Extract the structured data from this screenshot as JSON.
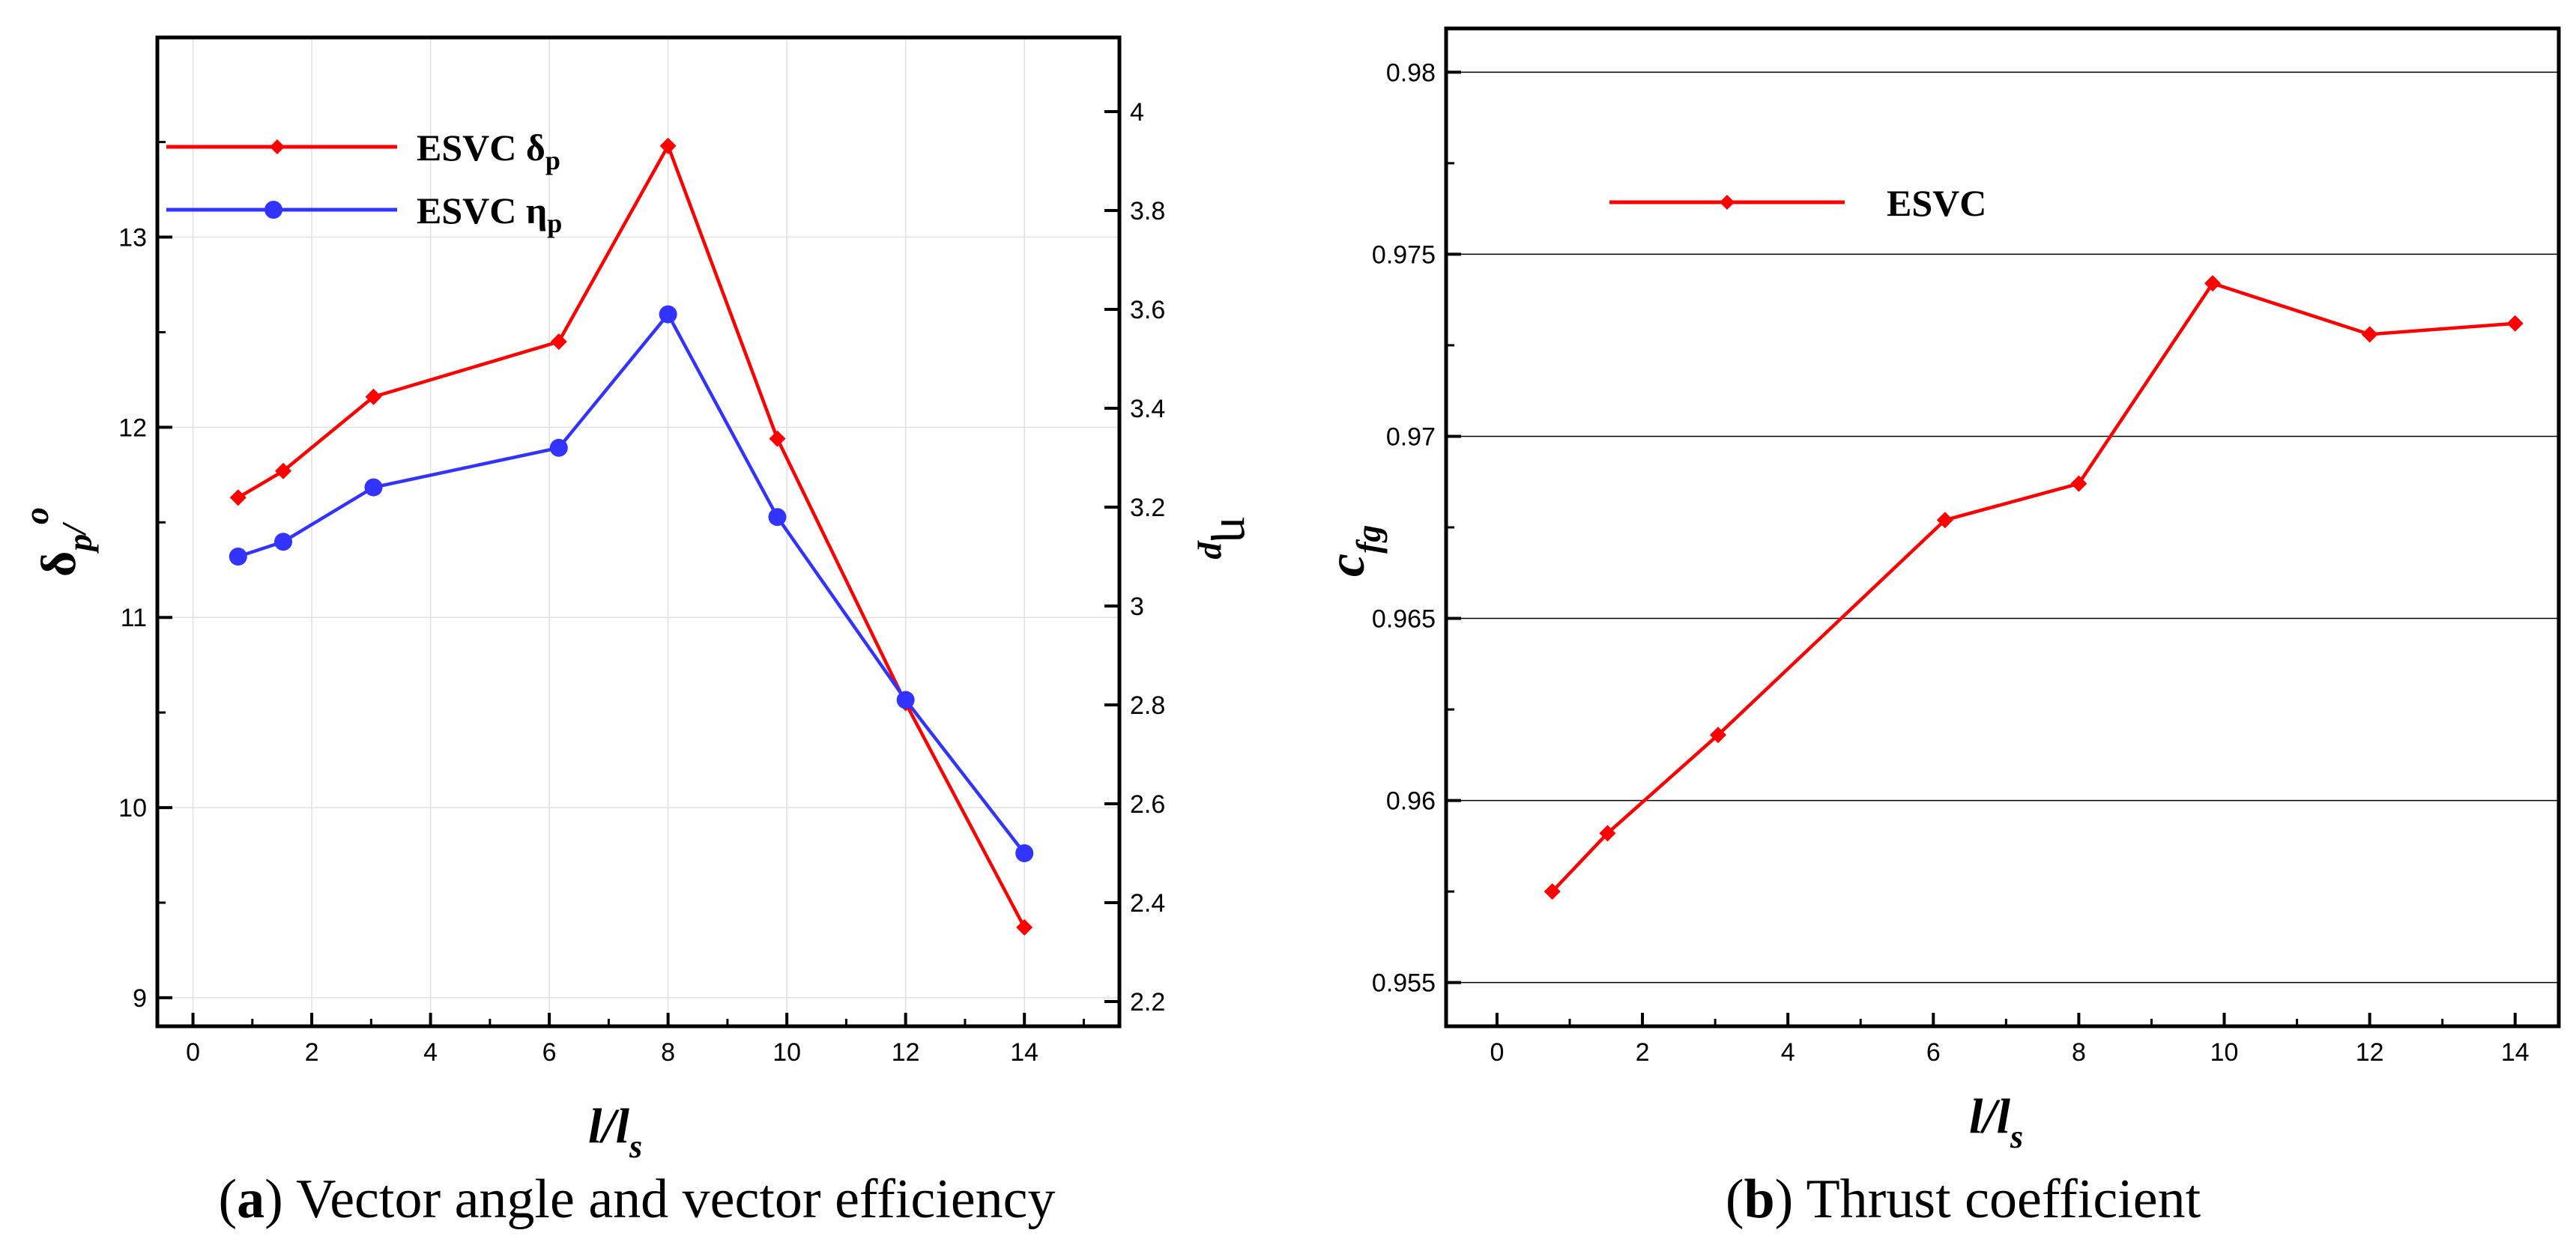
{
  "chart_data": [
    {
      "type": "line",
      "panel": "a",
      "caption_letter": "a",
      "caption_text": "Vector angle and vector efficiency",
      "xlabel_main": "l/l",
      "xlabel_sub": "s",
      "ylabel_left_main": "δ",
      "ylabel_left_sub": "p",
      "ylabel_left_tail": "/",
      "ylabel_left_sup": "o",
      "ylabel_right_main": "η",
      "ylabel_right_sub": "p",
      "xlim": [
        -0.6,
        15.6
      ],
      "ylim_left": [
        8.85,
        14.05
      ],
      "ylim_right": [
        2.15,
        4.15
      ],
      "xticks": [
        "0",
        "2",
        "4",
        "6",
        "8",
        "10",
        "12",
        "14"
      ],
      "yticks_left": [
        "9",
        "10",
        "11",
        "12",
        "13"
      ],
      "yticks_right": [
        "2.2",
        "2.4",
        "2.6",
        "2.8",
        "3",
        "3.2",
        "3.4",
        "3.6",
        "3.8",
        "4"
      ],
      "series": [
        {
          "name": "ESVC δp",
          "legend_main": "ESVC δ",
          "legend_sub": "p",
          "axis": "left",
          "color": "#ff0000",
          "marker": "diamond",
          "x": [
            0.76,
            1.52,
            3.04,
            6.16,
            8.0,
            9.84,
            12.0,
            14.0
          ],
          "y": [
            11.63,
            11.77,
            12.16,
            12.45,
            13.48,
            11.94,
            10.55,
            9.37
          ]
        },
        {
          "name": "ESVC ηp",
          "legend_main": "ESVC η",
          "legend_sub": "p",
          "axis": "right",
          "color": "#3333ff",
          "marker": "circle",
          "x": [
            0.76,
            1.52,
            3.04,
            6.16,
            8.0,
            9.84,
            12.0,
            14.0
          ],
          "y": [
            3.1,
            3.13,
            3.24,
            3.32,
            3.59,
            3.18,
            2.81,
            2.5
          ]
        }
      ]
    },
    {
      "type": "line",
      "panel": "b",
      "caption_letter": "b",
      "caption_text": "Thrust coefficient",
      "xlabel_main": "l/l",
      "xlabel_sub": "s",
      "ylabel_main": "c",
      "ylabel_sub": "fg",
      "xlim": [
        -0.7,
        14.6
      ],
      "ylim": [
        0.9538,
        0.9812
      ],
      "xticks": [
        "0",
        "2",
        "4",
        "6",
        "8",
        "10",
        "12",
        "14"
      ],
      "yticks": [
        "0.955",
        "0.96",
        "0.965",
        "0.97",
        "0.975",
        "0.98"
      ],
      "series": [
        {
          "name": "ESVC",
          "legend_main": "ESVC",
          "color": "#ff0000",
          "marker": "diamond",
          "x": [
            0.76,
            1.52,
            3.04,
            6.16,
            8.0,
            9.84,
            12.0,
            14.0
          ],
          "y": [
            0.9575,
            0.9591,
            0.9618,
            0.9677,
            0.9687,
            0.9742,
            0.9728,
            0.9731
          ]
        }
      ]
    }
  ]
}
